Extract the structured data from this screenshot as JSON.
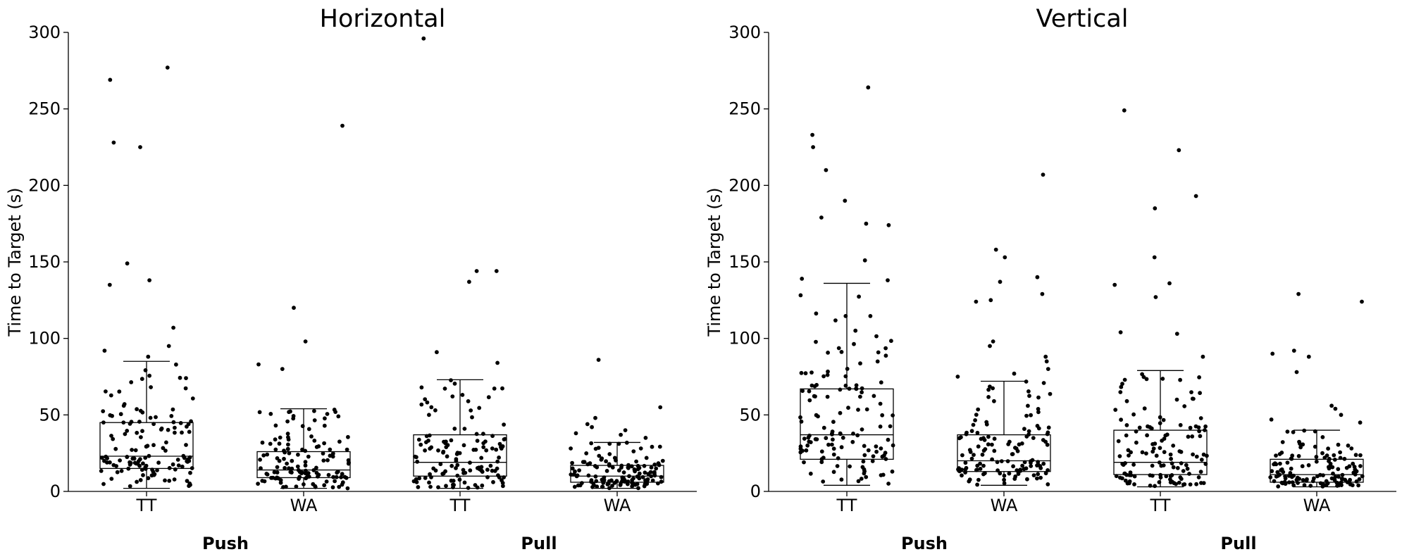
{
  "chart_data": [
    {
      "type": "box",
      "title": "Horizontal",
      "ylabel": "Time to Target (s)",
      "ylim": [
        0,
        300
      ],
      "yticks": [
        "0",
        "50",
        "100",
        "150",
        "200",
        "250",
        "300"
      ],
      "categories": [
        "TT",
        "WA",
        "TT",
        "WA"
      ],
      "groups": [
        {
          "label": "Push",
          "categories": [
            0,
            1
          ]
        },
        {
          "label": "Pull",
          "categories": [
            2,
            3
          ]
        }
      ],
      "boxes": [
        {
          "category": "TT",
          "group": "Push",
          "whisker_low": 2,
          "q1": 15,
          "median": 23,
          "q3": 45,
          "whisker_high": 85,
          "outliers": [
            277,
            269,
            228,
            225,
            149,
            138,
            135,
            107,
            95,
            92,
            88
          ]
        },
        {
          "category": "WA",
          "group": "Push",
          "whisker_low": 2,
          "q1": 9,
          "median": 14,
          "q3": 26,
          "whisker_high": 54,
          "outliers": [
            239,
            120,
            98,
            83,
            80
          ]
        },
        {
          "category": "TT",
          "group": "Pull",
          "whisker_low": 2,
          "q1": 10,
          "median": 19,
          "q3": 37,
          "whisker_high": 73,
          "outliers": [
            296,
            144,
            144,
            137,
            91,
            84
          ]
        },
        {
          "category": "WA",
          "group": "Pull",
          "whisker_low": 2,
          "q1": 6,
          "median": 10,
          "q3": 17,
          "whisker_high": 32,
          "outliers": [
            86,
            55,
            48,
            44,
            42,
            40,
            38,
            37,
            35
          ]
        }
      ]
    },
    {
      "type": "box",
      "title": "Vertical",
      "ylabel": "Time to Target (s)",
      "ylim": [
        0,
        300
      ],
      "yticks": [
        "0",
        "50",
        "100",
        "150",
        "200",
        "250",
        "300"
      ],
      "categories": [
        "TT",
        "WA",
        "TT",
        "WA"
      ],
      "groups": [
        {
          "label": "Push",
          "categories": [
            0,
            1
          ]
        },
        {
          "label": "Pull",
          "categories": [
            2,
            3
          ]
        }
      ],
      "boxes": [
        {
          "category": "TT",
          "group": "Push",
          "whisker_low": 4,
          "q1": 21,
          "median": 37,
          "q3": 67,
          "whisker_high": 136,
          "outliers": [
            264,
            233,
            225,
            210,
            190,
            179,
            175,
            174,
            151,
            139,
            138
          ]
        },
        {
          "category": "WA",
          "group": "Push",
          "whisker_low": 4,
          "q1": 13,
          "median": 20,
          "q3": 37,
          "whisker_high": 72,
          "outliers": [
            207,
            158,
            153,
            140,
            137,
            129,
            125,
            124,
            98,
            95,
            88,
            85,
            80,
            77,
            75
          ]
        },
        {
          "category": "TT",
          "group": "Pull",
          "whisker_low": 3,
          "q1": 11,
          "median": 19,
          "q3": 40,
          "whisker_high": 79,
          "outliers": [
            249,
            223,
            193,
            185,
            153,
            136,
            135,
            127,
            104,
            103,
            88
          ]
        },
        {
          "category": "WA",
          "group": "Pull",
          "whisker_low": 3,
          "q1": 6,
          "median": 11,
          "q3": 21,
          "whisker_high": 40,
          "outliers": [
            129,
            124,
            92,
            90,
            88,
            78,
            56,
            54,
            50,
            47,
            45
          ]
        }
      ]
    }
  ]
}
